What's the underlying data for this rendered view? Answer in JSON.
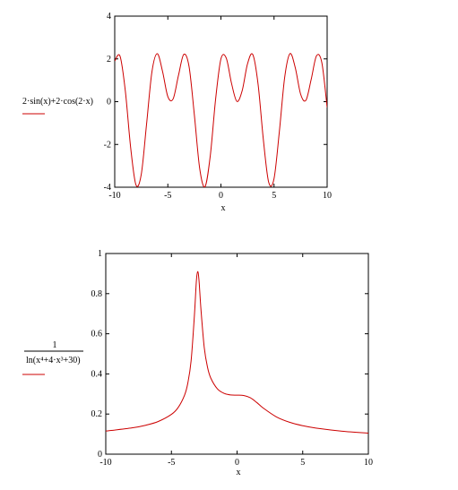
{
  "chart_data": [
    {
      "type": "line",
      "xlabel": "x",
      "x": [
        -10,
        -9.5,
        -9,
        -8.5,
        -8,
        -7.5,
        -7,
        -6.5,
        -6,
        -5.5,
        -5,
        -4.5,
        -4,
        -3.5,
        -3,
        -2.5,
        -2,
        -1.5,
        -1,
        -0.5,
        0,
        0.5,
        1,
        1.5,
        2,
        2.5,
        3,
        3.5,
        4,
        4.5,
        5,
        5.5,
        6,
        6.5,
        7,
        7.5,
        8,
        8.5,
        9,
        9.5,
        10
      ],
      "series": [
        {
          "name": "2·sin(x)+2·cos(2·x)",
          "color": "#cc0000",
          "values": [
            1.904,
            2.128,
            0.496,
            -2.147,
            -3.894,
            -3.395,
            -1.041,
            1.385,
            2.247,
            1.42,
            0.24,
            0.133,
            1.223,
            2.209,
            1.638,
            -0.63,
            -3.126,
            -3.975,
            -2.515,
            0.122,
            2,
            2.039,
            0.851,
            0.015,
            0.511,
            1.764,
            2.203,
            0.806,
            -1.805,
            -3.777,
            -3.596,
            -1.402,
            1.129,
            2.245,
            1.587,
            0.357,
            0.063,
            1.047,
            2.145,
            1.827,
            -0.272
          ]
        }
      ],
      "xlim": [
        -10,
        10
      ],
      "xticks": [
        -10,
        -5,
        0,
        5,
        10
      ],
      "ylim": [
        -4,
        4
      ],
      "yticks": [
        -4,
        -2,
        0,
        2,
        4
      ]
    },
    {
      "type": "line",
      "xlabel": "x",
      "legend": {
        "numerator": "1",
        "denominator": "ln(x⁴+4·x³+30)"
      },
      "x": [
        -10,
        -8,
        -7,
        -6,
        -5,
        -4.5,
        -4,
        -3.75,
        -3.5,
        -3.25,
        -3.1,
        -3,
        -2.9,
        -2.75,
        -2.5,
        -2.25,
        -2,
        -1.5,
        -1,
        -0.5,
        0,
        0.5,
        1,
        1.5,
        2,
        3,
        4,
        5,
        6,
        8,
        10
      ],
      "series": [
        {
          "color": "#cc0000",
          "values": [
            0.1149,
            0.1309,
            0.1436,
            0.163,
            0.1983,
            0.2312,
            0.294,
            0.3544,
            0.4657,
            0.69,
            0.862,
            0.91,
            0.867,
            0.7213,
            0.5316,
            0.433,
            0.3789,
            0.3256,
            0.3034,
            0.2953,
            0.294,
            0.2924,
            0.2813,
            0.2575,
            0.2295,
            0.1856,
            0.1589,
            0.1418,
            0.13,
            0.1146,
            0.1047
          ]
        }
      ],
      "xlim": [
        -10,
        10
      ],
      "xticks": [
        -10,
        -5,
        0,
        5,
        10
      ],
      "ylim": [
        0,
        1
      ],
      "yticks": [
        0,
        0.2,
        0.4,
        0.6,
        0.8,
        1
      ]
    }
  ]
}
